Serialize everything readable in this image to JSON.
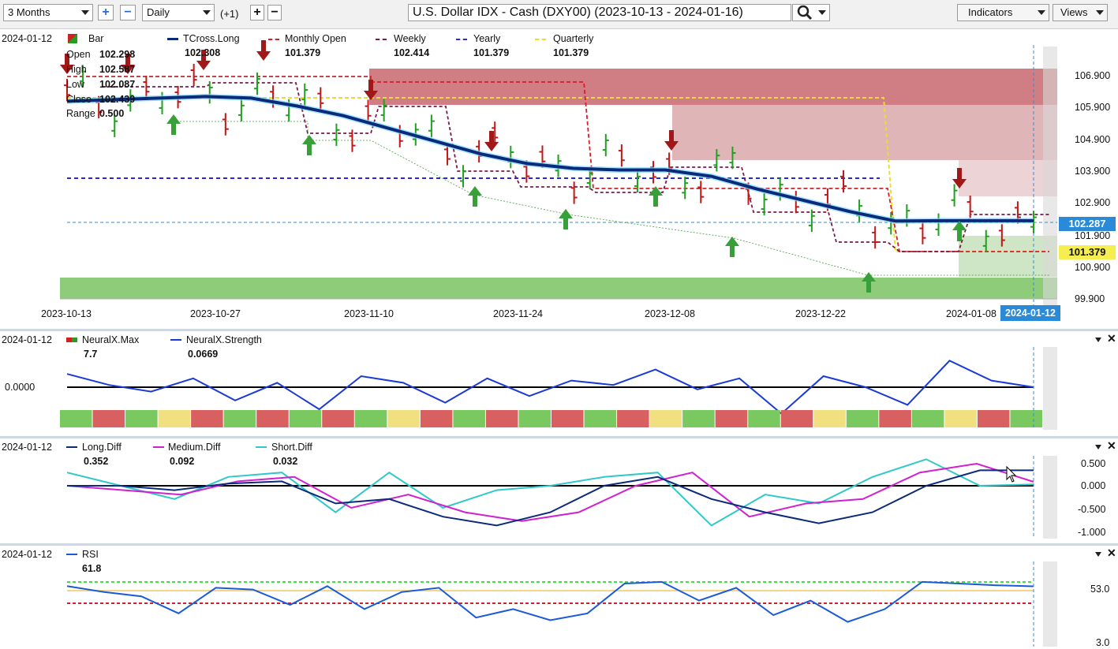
{
  "toolbar": {
    "period": "3 Months",
    "interval": "Daily",
    "offset": "(+1)",
    "symbol": "U.S. Dollar IDX - Cash (DXY00) (2023-10-13 - 2024-01-16)",
    "indicators": "Indicators",
    "views": "Views"
  },
  "main": {
    "date": "2024-01-12",
    "legend": [
      {
        "name": "Bar",
        "value": "",
        "color": "#2a9a2a"
      },
      {
        "name": "TCross.Long",
        "value": "102.308",
        "color": "#0b2a7a"
      },
      {
        "name": "Monthly Open",
        "value": "101.379",
        "color": "#d0202a"
      },
      {
        "name": "Weekly",
        "value": "102.414",
        "color": "#7a1a4a"
      },
      {
        "name": "Yearly",
        "value": "101.379",
        "color": "#2a2ad0"
      },
      {
        "name": "Quarterly",
        "value": "101.379",
        "color": "#e8e020"
      }
    ],
    "ohlc": [
      {
        "label": "Open",
        "value": "102.298"
      },
      {
        "label": "High",
        "value": "102.587"
      },
      {
        "label": "Low",
        "value": "102.087"
      },
      {
        "label": "Close",
        "value": "102.439"
      }
    ],
    "range_label": "Range",
    "range_value": "0.500",
    "y_ticks": [
      "106.900",
      "105.900",
      "104.900",
      "103.900",
      "102.900",
      "101.900",
      "100.900",
      "99.900"
    ],
    "x_ticks": [
      "2023-10-13",
      "2023-10-27",
      "2023-11-10",
      "2023-11-24",
      "2023-12-08",
      "2023-12-22",
      "2024-01-08"
    ],
    "x_cursor_date": "2024-01-12",
    "price_tag": "102.287",
    "level_tag": "101.379"
  },
  "neural": {
    "date": "2024-01-12",
    "legend": [
      {
        "name": "NeuralX.Max",
        "value": "7.7"
      },
      {
        "name": "NeuralX.Strength",
        "value": "0.0669"
      }
    ],
    "zero_label": "0.0000"
  },
  "diff": {
    "date": "2024-01-12",
    "legend": [
      {
        "name": "Long.Diff",
        "value": "0.352",
        "color": "#0b2a7a"
      },
      {
        "name": "Medium.Diff",
        "value": "0.092",
        "color": "#d020d0"
      },
      {
        "name": "Short.Diff",
        "value": "0.032",
        "color": "#30c8c8"
      }
    ],
    "y_ticks": [
      "0.500",
      "0.000",
      "-0.500",
      "-1.000"
    ]
  },
  "rsi": {
    "date": "2024-01-12",
    "legend": [
      {
        "name": "RSI",
        "value": "61.8"
      }
    ],
    "y_ticks": [
      "53.0",
      "3.0"
    ]
  },
  "chart_data": [
    {
      "type": "line",
      "title": "U.S. Dollar IDX - Cash (DXY00)",
      "y_range": [
        99.9,
        106.9
      ],
      "series": [
        {
          "name": "TCross.Long",
          "values": [
            106.05,
            106.1,
            106.15,
            106.2,
            106.15,
            105.9,
            105.6,
            105.2,
            104.8,
            104.4,
            104.1,
            103.95,
            103.9,
            103.9,
            103.7,
            103.3,
            102.95,
            102.6,
            102.3,
            102.31,
            102.31,
            102.31
          ]
        }
      ]
    },
    {
      "type": "line",
      "title": "NeuralX.Strength",
      "series": [
        {
          "name": "NeuralX.Strength",
          "values": [
            0.6,
            0.1,
            -0.2,
            0.4,
            -0.6,
            0.2,
            -1.0,
            0.5,
            0.2,
            -0.7,
            0.4,
            -0.4,
            0.3,
            0.1,
            0.8,
            -0.1,
            0.4,
            -1.2,
            0.5,
            0.0,
            -0.8,
            1.2,
            0.3,
            0.0
          ]
        }
      ]
    },
    {
      "type": "line",
      "title": "Diff",
      "y_range": [
        -1.0,
        0.5
      ],
      "series": [
        {
          "name": "Long.Diff",
          "values": [
            0.0,
            0.0,
            -0.1,
            0.05,
            0.1,
            -0.4,
            -0.3,
            -0.7,
            -0.9,
            -0.6,
            0.0,
            0.2,
            -0.3,
            -0.6,
            -0.85,
            -0.6,
            0.0,
            0.35,
            0.35
          ]
        },
        {
          "name": "Medium.Diff",
          "values": [
            0.0,
            -0.1,
            -0.2,
            0.1,
            0.2,
            -0.5,
            -0.2,
            -0.6,
            -0.8,
            -0.6,
            0.0,
            0.3,
            -0.7,
            -0.4,
            -0.3,
            0.3,
            0.5,
            0.09
          ]
        },
        {
          "name": "Short.Diff",
          "values": [
            0.3,
            0.0,
            -0.3,
            0.2,
            0.3,
            -0.6,
            0.3,
            -0.5,
            -0.1,
            0.0,
            0.2,
            0.3,
            -0.9,
            -0.2,
            -0.4,
            0.2,
            0.6,
            0.0,
            0.03
          ]
        }
      ]
    },
    {
      "type": "line",
      "title": "RSI",
      "y_range": [
        3.0,
        75.0
      ],
      "series": [
        {
          "name": "RSI",
          "values": [
            62,
            55,
            50,
            30,
            60,
            58,
            40,
            62,
            35,
            55,
            60,
            25,
            35,
            22,
            30,
            65,
            67,
            45,
            60,
            28,
            45,
            20,
            35,
            67,
            65,
            63,
            61.8
          ]
        }
      ]
    }
  ]
}
